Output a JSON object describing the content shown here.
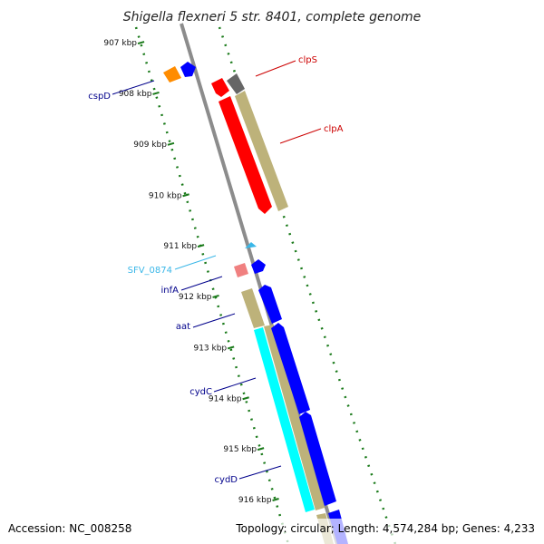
{
  "title": "Shigella flexneri 5 str. 8401, complete genome",
  "accession": "Accession: NC_008258",
  "summary": "Topology: circular; Length: 4,574,284 bp; Genes: 4,233",
  "kbp_labels": [
    {
      "label": "907 kbp",
      "t": 0.03
    },
    {
      "label": "908 kbp",
      "t": 0.128
    },
    {
      "label": "909 kbp",
      "t": 0.226
    },
    {
      "label": "910 kbp",
      "t": 0.325
    },
    {
      "label": "911 kbp",
      "t": 0.423
    },
    {
      "label": "912 kbp",
      "t": 0.521
    },
    {
      "label": "913 kbp",
      "t": 0.62
    },
    {
      "label": "914 kbp",
      "t": 0.718
    },
    {
      "label": "915 kbp",
      "t": 0.816
    },
    {
      "label": "916 kbp",
      "t": 0.914
    }
  ],
  "genes": [
    {
      "name": "cspD",
      "color": "#00008b",
      "side": "left"
    },
    {
      "name": "clpS",
      "color": "#cc0000",
      "side": "right"
    },
    {
      "name": "clpA",
      "color": "#cc0000",
      "side": "right"
    },
    {
      "name": "SFV_0874",
      "color": "#3ab7e8",
      "side": "left"
    },
    {
      "name": "infA",
      "color": "#00008b",
      "side": "left"
    },
    {
      "name": "aat",
      "color": "#00008b",
      "side": "left"
    },
    {
      "name": "cydC",
      "color": "#00008b",
      "side": "left"
    },
    {
      "name": "cydD",
      "color": "#00008b",
      "side": "left"
    }
  ],
  "colors": {
    "backbone": "#8c8c8c",
    "tick_dots": "#1a7a1a",
    "red_gene": "#ff0000",
    "blue_gene": "#0000ff",
    "khaki_gene": "#bdb27a",
    "cyan_gene": "#00ffff",
    "orange_gene": "#ff8c00",
    "gray_gene": "#666666",
    "pink_gene": "#f08080"
  }
}
